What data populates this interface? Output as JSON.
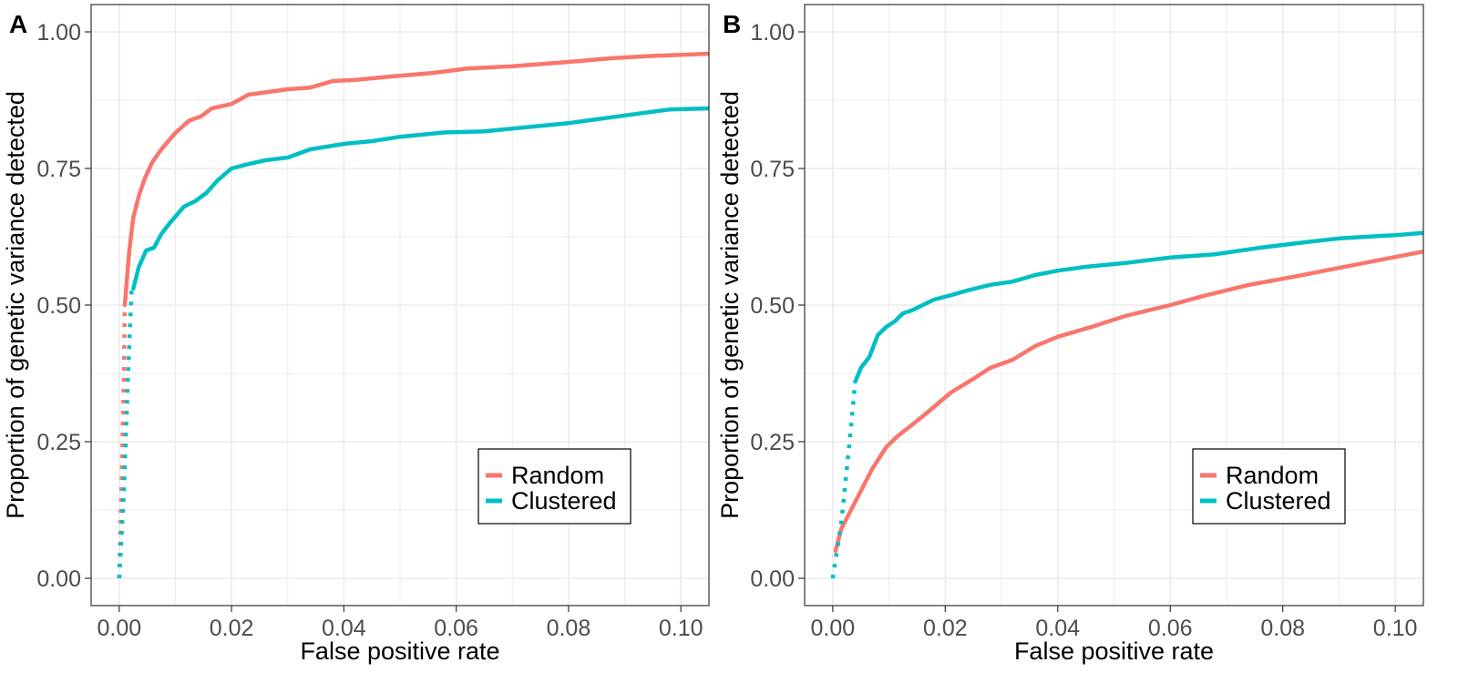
{
  "chart_data": [
    {
      "panel": "A",
      "type": "line",
      "xlabel": "False positive rate",
      "ylabel": "Proportion of genetic variance detected",
      "xlim": [
        -0.005,
        0.105
      ],
      "ylim": [
        -0.05,
        1.05
      ],
      "x_ticks": [
        0.0,
        0.02,
        0.04,
        0.06,
        0.08,
        0.1
      ],
      "x_tick_labels": [
        "0.00",
        "0.02",
        "0.04",
        "0.06",
        "0.08",
        "0.10"
      ],
      "y_ticks": [
        0,
        0.25,
        0.5,
        0.75,
        1.0
      ],
      "y_tick_labels": [
        "0.00",
        "0.25",
        "0.50",
        "0.75",
        "1.00"
      ],
      "grid": true,
      "legend": {
        "position": "bottom-right",
        "entries": [
          "Random",
          "Clustered"
        ]
      },
      "series": [
        {
          "name": "Random",
          "color": "#F8766D",
          "dotted": [
            [
              0.0,
              0.0
            ],
            [
              0.0005,
              0.2
            ],
            [
              0.0008,
              0.35
            ],
            [
              0.001,
              0.5
            ]
          ],
          "solid": [
            [
              0.001,
              0.5
            ],
            [
              0.0018,
              0.6
            ],
            [
              0.0025,
              0.66
            ],
            [
              0.0035,
              0.7
            ],
            [
              0.0045,
              0.73
            ],
            [
              0.0058,
              0.76
            ],
            [
              0.0075,
              0.785
            ],
            [
              0.01,
              0.815
            ],
            [
              0.0125,
              0.838
            ],
            [
              0.0145,
              0.845
            ],
            [
              0.0165,
              0.86
            ],
            [
              0.02,
              0.868
            ],
            [
              0.023,
              0.885
            ],
            [
              0.03,
              0.895
            ],
            [
              0.034,
              0.898
            ],
            [
              0.038,
              0.91
            ],
            [
              0.042,
              0.912
            ],
            [
              0.048,
              0.918
            ],
            [
              0.056,
              0.925
            ],
            [
              0.062,
              0.933
            ],
            [
              0.07,
              0.937
            ],
            [
              0.08,
              0.945
            ],
            [
              0.088,
              0.952
            ],
            [
              0.095,
              0.956
            ],
            [
              0.105,
              0.96
            ]
          ]
        },
        {
          "name": "Clustered",
          "color": "#00BFC4",
          "dotted": [
            [
              0.0,
              0.0
            ],
            [
              0.0008,
              0.15
            ],
            [
              0.0015,
              0.35
            ],
            [
              0.0022,
              0.53
            ]
          ],
          "solid": [
            [
              0.0025,
              0.53
            ],
            [
              0.0035,
              0.57
            ],
            [
              0.0048,
              0.6
            ],
            [
              0.0062,
              0.605
            ],
            [
              0.0075,
              0.63
            ],
            [
              0.009,
              0.65
            ],
            [
              0.0115,
              0.68
            ],
            [
              0.0135,
              0.69
            ],
            [
              0.0155,
              0.705
            ],
            [
              0.0175,
              0.728
            ],
            [
              0.02,
              0.75
            ],
            [
              0.023,
              0.758
            ],
            [
              0.026,
              0.765
            ],
            [
              0.03,
              0.77
            ],
            [
              0.034,
              0.785
            ],
            [
              0.04,
              0.795
            ],
            [
              0.045,
              0.8
            ],
            [
              0.05,
              0.808
            ],
            [
              0.058,
              0.816
            ],
            [
              0.065,
              0.818
            ],
            [
              0.072,
              0.825
            ],
            [
              0.08,
              0.833
            ],
            [
              0.09,
              0.847
            ],
            [
              0.098,
              0.858
            ],
            [
              0.105,
              0.86
            ]
          ]
        }
      ]
    },
    {
      "panel": "B",
      "type": "line",
      "xlabel": "False positive rate",
      "ylabel": "Proportion of genetic variance detected",
      "xlim": [
        -0.005,
        0.105
      ],
      "ylim": [
        -0.05,
        1.05
      ],
      "x_ticks": [
        0.0,
        0.02,
        0.04,
        0.06,
        0.08,
        0.1
      ],
      "x_tick_labels": [
        "0.00",
        "0.02",
        "0.04",
        "0.06",
        "0.08",
        "0.10"
      ],
      "y_ticks": [
        0,
        0.25,
        0.5,
        0.75,
        1.0
      ],
      "y_tick_labels": [
        "0.00",
        "0.25",
        "0.50",
        "0.75",
        "1.00"
      ],
      "grid": true,
      "legend": {
        "position": "bottom-right",
        "entries": [
          "Random",
          "Clustered"
        ]
      },
      "series": [
        {
          "name": "Random",
          "color": "#F8766D",
          "dotted": [],
          "solid": [
            [
              0.0005,
              0.05
            ],
            [
              0.0015,
              0.09
            ],
            [
              0.003,
              0.12
            ],
            [
              0.005,
              0.16
            ],
            [
              0.007,
              0.2
            ],
            [
              0.0095,
              0.24
            ],
            [
              0.0115,
              0.26
            ],
            [
              0.014,
              0.28
            ],
            [
              0.017,
              0.305
            ],
            [
              0.021,
              0.34
            ],
            [
              0.025,
              0.365
            ],
            [
              0.028,
              0.385
            ],
            [
              0.032,
              0.4
            ],
            [
              0.036,
              0.425
            ],
            [
              0.04,
              0.442
            ],
            [
              0.046,
              0.46
            ],
            [
              0.052,
              0.48
            ],
            [
              0.06,
              0.5
            ],
            [
              0.066,
              0.517
            ],
            [
              0.074,
              0.537
            ],
            [
              0.082,
              0.552
            ],
            [
              0.09,
              0.568
            ],
            [
              0.1,
              0.588
            ],
            [
              0.105,
              0.598
            ]
          ]
        },
        {
          "name": "Clustered",
          "color": "#00BFC4",
          "dotted": [
            [
              0.0,
              0.0
            ],
            [
              0.0015,
              0.1
            ],
            [
              0.003,
              0.25
            ],
            [
              0.004,
              0.36
            ]
          ],
          "solid": [
            [
              0.004,
              0.36
            ],
            [
              0.005,
              0.385
            ],
            [
              0.0065,
              0.405
            ],
            [
              0.008,
              0.445
            ],
            [
              0.0095,
              0.46
            ],
            [
              0.011,
              0.47
            ],
            [
              0.0125,
              0.485
            ],
            [
              0.014,
              0.49
            ],
            [
              0.016,
              0.5
            ],
            [
              0.018,
              0.51
            ],
            [
              0.021,
              0.518
            ],
            [
              0.024,
              0.527
            ],
            [
              0.028,
              0.537
            ],
            [
              0.032,
              0.543
            ],
            [
              0.036,
              0.555
            ],
            [
              0.04,
              0.563
            ],
            [
              0.045,
              0.57
            ],
            [
              0.052,
              0.577
            ],
            [
              0.06,
              0.587
            ],
            [
              0.068,
              0.593
            ],
            [
              0.076,
              0.605
            ],
            [
              0.084,
              0.615
            ],
            [
              0.09,
              0.622
            ],
            [
              0.1,
              0.628
            ],
            [
              0.105,
              0.632
            ]
          ]
        }
      ]
    }
  ]
}
